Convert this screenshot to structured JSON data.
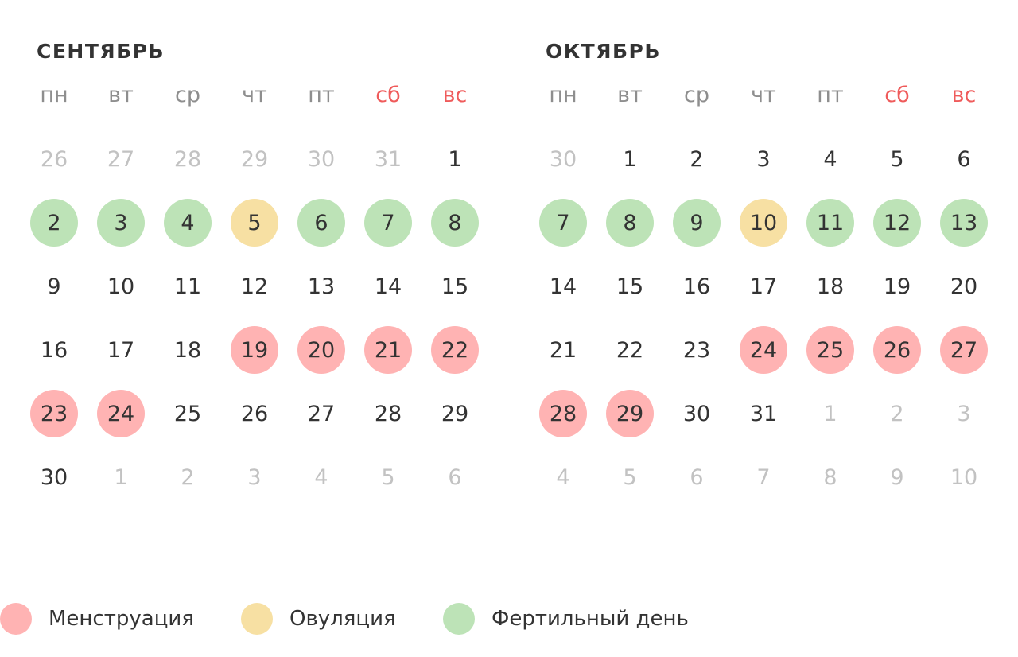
{
  "weekdays": [
    {
      "label": "пн",
      "weekend": false
    },
    {
      "label": "вт",
      "weekend": false
    },
    {
      "label": "ср",
      "weekend": false
    },
    {
      "label": "чт",
      "weekend": false
    },
    {
      "label": "пт",
      "weekend": false
    },
    {
      "label": "сб",
      "weekend": true
    },
    {
      "label": "вс",
      "weekend": true
    }
  ],
  "colors": {
    "menstruation": "#ffb3b3",
    "ovulation": "#f7e0a3",
    "fertile": "#bde3b7",
    "weekend_text": "#ef5b5b",
    "other_month_text": "#c2c2c2"
  },
  "months": [
    {
      "title": "СЕНТЯБРЬ",
      "weeks": [
        [
          {
            "d": "26",
            "other": true
          },
          {
            "d": "27",
            "other": true
          },
          {
            "d": "28",
            "other": true
          },
          {
            "d": "29",
            "other": true
          },
          {
            "d": "30",
            "other": true
          },
          {
            "d": "31",
            "other": true
          },
          {
            "d": "1"
          }
        ],
        [
          {
            "d": "2",
            "mark": "fertile"
          },
          {
            "d": "3",
            "mark": "fertile"
          },
          {
            "d": "4",
            "mark": "fertile"
          },
          {
            "d": "5",
            "mark": "ovulation"
          },
          {
            "d": "6",
            "mark": "fertile"
          },
          {
            "d": "7",
            "mark": "fertile"
          },
          {
            "d": "8",
            "mark": "fertile"
          }
        ],
        [
          {
            "d": "9"
          },
          {
            "d": "10"
          },
          {
            "d": "11"
          },
          {
            "d": "12"
          },
          {
            "d": "13"
          },
          {
            "d": "14"
          },
          {
            "d": "15"
          }
        ],
        [
          {
            "d": "16"
          },
          {
            "d": "17"
          },
          {
            "d": "18"
          },
          {
            "d": "19",
            "mark": "menstruation"
          },
          {
            "d": "20",
            "mark": "menstruation"
          },
          {
            "d": "21",
            "mark": "menstruation"
          },
          {
            "d": "22",
            "mark": "menstruation"
          }
        ],
        [
          {
            "d": "23",
            "mark": "menstruation"
          },
          {
            "d": "24",
            "mark": "menstruation"
          },
          {
            "d": "25"
          },
          {
            "d": "26"
          },
          {
            "d": "27"
          },
          {
            "d": "28"
          },
          {
            "d": "29"
          }
        ],
        [
          {
            "d": "30"
          },
          {
            "d": "1",
            "other": true
          },
          {
            "d": "2",
            "other": true
          },
          {
            "d": "3",
            "other": true
          },
          {
            "d": "4",
            "other": true
          },
          {
            "d": "5",
            "other": true
          },
          {
            "d": "6",
            "other": true
          }
        ]
      ]
    },
    {
      "title": "ОКТЯБРЬ",
      "weeks": [
        [
          {
            "d": "30",
            "other": true
          },
          {
            "d": "1"
          },
          {
            "d": "2"
          },
          {
            "d": "3"
          },
          {
            "d": "4"
          },
          {
            "d": "5"
          },
          {
            "d": "6"
          }
        ],
        [
          {
            "d": "7",
            "mark": "fertile"
          },
          {
            "d": "8",
            "mark": "fertile"
          },
          {
            "d": "9",
            "mark": "fertile"
          },
          {
            "d": "10",
            "mark": "ovulation"
          },
          {
            "d": "11",
            "mark": "fertile"
          },
          {
            "d": "12",
            "mark": "fertile"
          },
          {
            "d": "13",
            "mark": "fertile"
          }
        ],
        [
          {
            "d": "14"
          },
          {
            "d": "15"
          },
          {
            "d": "16"
          },
          {
            "d": "17"
          },
          {
            "d": "18"
          },
          {
            "d": "19"
          },
          {
            "d": "20"
          }
        ],
        [
          {
            "d": "21"
          },
          {
            "d": "22"
          },
          {
            "d": "23"
          },
          {
            "d": "24",
            "mark": "menstruation"
          },
          {
            "d": "25",
            "mark": "menstruation"
          },
          {
            "d": "26",
            "mark": "menstruation"
          },
          {
            "d": "27",
            "mark": "menstruation"
          }
        ],
        [
          {
            "d": "28",
            "mark": "menstruation"
          },
          {
            "d": "29",
            "mark": "menstruation"
          },
          {
            "d": "30"
          },
          {
            "d": "31"
          },
          {
            "d": "1",
            "other": true
          },
          {
            "d": "2",
            "other": true
          },
          {
            "d": "3",
            "other": true
          }
        ],
        [
          {
            "d": "4",
            "other": true
          },
          {
            "d": "5",
            "other": true
          },
          {
            "d": "6",
            "other": true
          },
          {
            "d": "7",
            "other": true
          },
          {
            "d": "8",
            "other": true
          },
          {
            "d": "9",
            "other": true
          },
          {
            "d": "10",
            "other": true
          }
        ]
      ]
    }
  ],
  "legend": [
    {
      "key": "menstruation",
      "label": "Менструация"
    },
    {
      "key": "ovulation",
      "label": "Овуляция"
    },
    {
      "key": "fertile",
      "label": "Фертильный день"
    }
  ]
}
